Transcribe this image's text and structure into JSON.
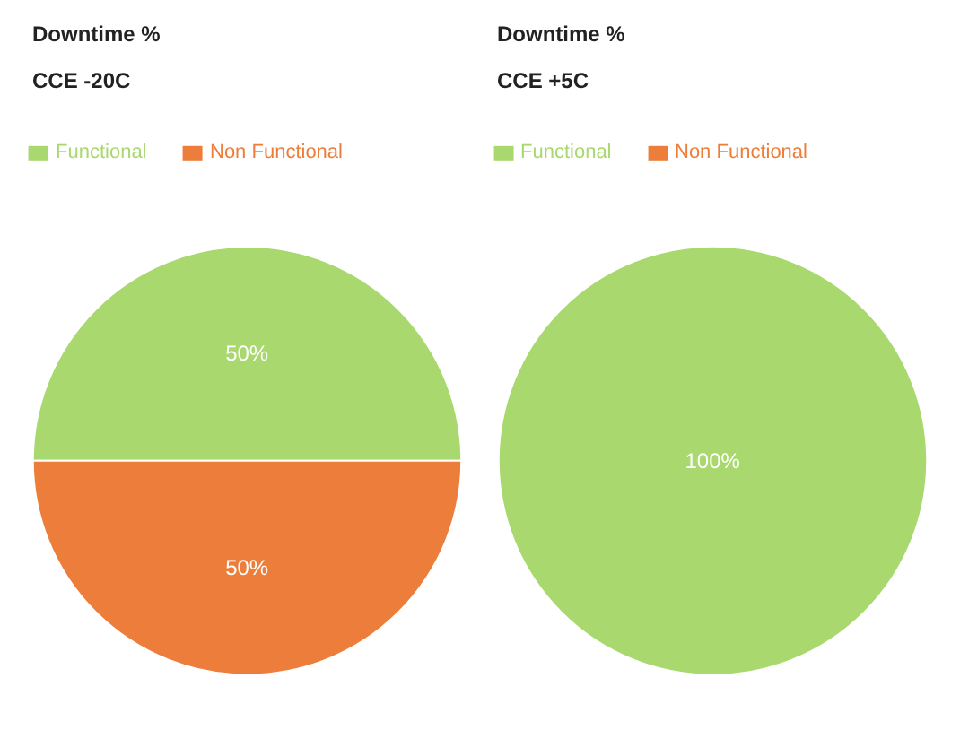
{
  "chart_data": [
    {
      "type": "pie",
      "title": "Downtime %",
      "subtitle": "CCE -20C",
      "categories": [
        "Functional",
        "Non Functional"
      ],
      "values": [
        50,
        50
      ],
      "colors": [
        "#a8d86e",
        "#ed7d3a"
      ],
      "value_labels": [
        "50%",
        "50%"
      ],
      "legend": "top left"
    },
    {
      "type": "pie",
      "title": "Downtime %",
      "subtitle": "CCE +5C",
      "categories": [
        "Functional",
        "Non Functional"
      ],
      "values": [
        100,
        0
      ],
      "colors": [
        "#a8d86e",
        "#ed7d3a"
      ],
      "value_labels": [
        "100%",
        null
      ],
      "legend": "top left"
    }
  ]
}
